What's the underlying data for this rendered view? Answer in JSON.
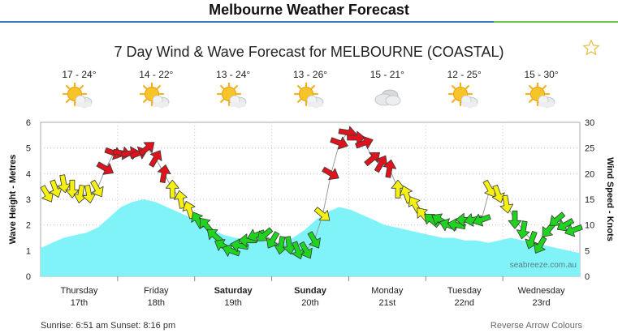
{
  "header": {
    "title": "Melbourne Weather Forecast"
  },
  "chart_title": "7 Day Wind & Wave Forecast for MELBOURNE (COASTAL)",
  "days": [
    {
      "temps": "17 - 24°",
      "icon": "partly-cloudy-icon",
      "name": "Thursday",
      "date": "17th",
      "bold": false
    },
    {
      "temps": "14 - 22°",
      "icon": "partly-cloudy-icon",
      "name": "Friday",
      "date": "18th",
      "bold": false
    },
    {
      "temps": "13 - 24°",
      "icon": "partly-cloudy-icon",
      "name": "Saturday",
      "date": "19th",
      "bold": true
    },
    {
      "temps": "13 - 26°",
      "icon": "partly-cloudy-icon",
      "name": "Sunday",
      "date": "20th",
      "bold": true
    },
    {
      "temps": "15 - 21°",
      "icon": "cloudy-icon",
      "name": "Monday",
      "date": "21st",
      "bold": false
    },
    {
      "temps": "12 - 25°",
      "icon": "partly-cloudy-icon",
      "name": "Tuesday",
      "date": "22nd",
      "bold": false
    },
    {
      "temps": "15 - 30°",
      "icon": "partly-cloudy-icon",
      "name": "Wednesday",
      "date": "23rd",
      "bold": false
    }
  ],
  "watermark": "seabreeze.com.au",
  "footer": {
    "sunrise": "Sunrise: 6:51 am",
    "sunset": "Sunset: 8:16 pm",
    "reverse": "Reverse Arrow Colours"
  },
  "colors": {
    "wave": "#7ff3f7",
    "strong": "#e0121b",
    "moderate": "#f4f011",
    "light": "#1fd41f"
  },
  "chart_data": {
    "type": "area",
    "y_left_label": "Wave Height - Metres",
    "y_right_label": "Wind Speed - Knots",
    "y_left_ticks": [
      "0",
      "1",
      "2",
      "3",
      "4",
      "5",
      "6"
    ],
    "y_right_ticks": [
      "0",
      "5",
      "10",
      "15",
      "20",
      "25",
      "30"
    ],
    "ylim_left": [
      0,
      6
    ],
    "ylim_right": [
      0,
      30
    ],
    "x_days": 7,
    "wave_height_m": [
      1.1,
      1.3,
      1.5,
      1.6,
      1.7,
      1.9,
      2.3,
      2.7,
      2.9,
      3.0,
      2.9,
      2.7,
      2.5,
      2.3,
      2.0,
      1.8,
      1.6,
      1.5,
      1.4,
      1.4,
      1.3,
      1.3,
      1.5,
      1.8,
      2.2,
      2.5,
      2.7,
      2.6,
      2.4,
      2.2,
      2.0,
      1.9,
      1.8,
      1.7,
      1.6,
      1.5,
      1.5,
      1.4,
      1.4,
      1.3,
      1.4,
      1.5,
      1.4,
      1.3,
      1.2,
      1.1,
      1.0,
      0.9
    ],
    "wind_speed_kn": [
      16,
      17,
      18,
      17,
      16,
      16,
      17,
      21,
      24,
      24,
      24,
      24,
      25,
      23,
      20,
      17,
      15,
      13,
      11,
      10,
      8,
      6,
      5,
      6,
      7,
      8,
      8,
      7,
      6,
      6,
      5,
      5,
      7,
      12,
      20,
      26,
      28,
      27,
      26,
      23,
      22,
      21,
      17,
      16,
      14,
      12,
      11,
      11,
      10,
      10,
      11,
      11,
      11,
      17,
      16,
      14,
      11,
      9,
      7,
      6,
      9,
      11,
      10,
      9
    ],
    "wind_dir_deg": [
      60,
      70,
      80,
      90,
      100,
      80,
      60,
      30,
      20,
      10,
      350,
      340,
      320,
      300,
      280,
      270,
      260,
      250,
      240,
      230,
      220,
      210,
      200,
      190,
      180,
      160,
      140,
      120,
      100,
      80,
      70,
      60,
      60,
      40,
      30,
      20,
      10,
      0,
      340,
      320,
      300,
      280,
      270,
      250,
      240,
      230,
      220,
      210,
      200,
      190,
      180,
      170,
      160,
      60,
      70,
      80,
      90,
      100,
      110,
      120,
      130,
      140,
      150,
      160
    ]
  }
}
